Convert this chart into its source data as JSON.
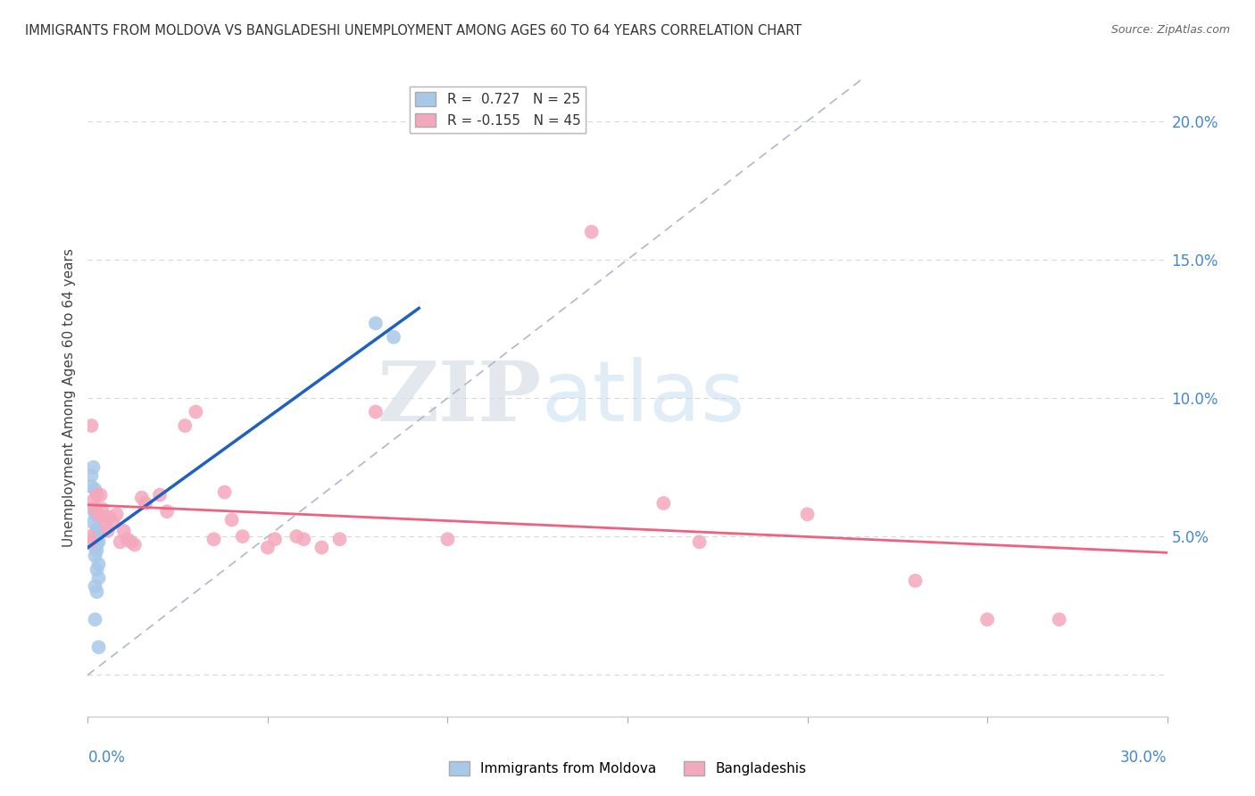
{
  "title": "IMMIGRANTS FROM MOLDOVA VS BANGLADESHI UNEMPLOYMENT AMONG AGES 60 TO 64 YEARS CORRELATION CHART",
  "source": "Source: ZipAtlas.com",
  "ylabel": "Unemployment Among Ages 60 to 64 years",
  "ytick_values": [
    0.0,
    0.05,
    0.1,
    0.15,
    0.2
  ],
  "ytick_labels_right": [
    "",
    "5.0%",
    "10.0%",
    "15.0%",
    "20.0%"
  ],
  "xlim": [
    0.0,
    0.3
  ],
  "ylim": [
    -0.015,
    0.215
  ],
  "moldova_color": "#a8c8e8",
  "bangladesh_color": "#f4a8bc",
  "moldova_line_color": "#2060c0",
  "bangladesh_line_color": "#f06080",
  "diagonal_color": "#b0b8c8",
  "watermark_zip": "ZIP",
  "watermark_atlas": "atlas",
  "moldova_scatter": [
    [
      0.001,
      0.068
    ],
    [
      0.0015,
      0.075
    ],
    [
      0.001,
      0.072
    ],
    [
      0.002,
      0.067
    ],
    [
      0.0015,
      0.06
    ],
    [
      0.002,
      0.058
    ],
    [
      0.0015,
      0.055
    ],
    [
      0.0025,
      0.058
    ],
    [
      0.0025,
      0.053
    ],
    [
      0.002,
      0.05
    ],
    [
      0.0025,
      0.048
    ],
    [
      0.003,
      0.052
    ],
    [
      0.002,
      0.046
    ],
    [
      0.003,
      0.048
    ],
    [
      0.0025,
      0.045
    ],
    [
      0.002,
      0.043
    ],
    [
      0.003,
      0.04
    ],
    [
      0.0025,
      0.038
    ],
    [
      0.002,
      0.032
    ],
    [
      0.003,
      0.035
    ],
    [
      0.0025,
      0.03
    ],
    [
      0.002,
      0.02
    ],
    [
      0.003,
      0.01
    ],
    [
      0.08,
      0.127
    ],
    [
      0.085,
      0.122
    ]
  ],
  "bangladesh_scatter": [
    [
      0.0005,
      0.05
    ],
    [
      0.001,
      0.09
    ],
    [
      0.0008,
      0.048
    ],
    [
      0.0015,
      0.063
    ],
    [
      0.002,
      0.06
    ],
    [
      0.0025,
      0.065
    ],
    [
      0.003,
      0.058
    ],
    [
      0.0035,
      0.065
    ],
    [
      0.004,
      0.06
    ],
    [
      0.0045,
      0.057
    ],
    [
      0.005,
      0.055
    ],
    [
      0.0055,
      0.052
    ],
    [
      0.006,
      0.057
    ],
    [
      0.007,
      0.055
    ],
    [
      0.008,
      0.058
    ],
    [
      0.009,
      0.048
    ],
    [
      0.01,
      0.052
    ],
    [
      0.011,
      0.049
    ],
    [
      0.012,
      0.048
    ],
    [
      0.013,
      0.047
    ],
    [
      0.015,
      0.064
    ],
    [
      0.016,
      0.062
    ],
    [
      0.02,
      0.065
    ],
    [
      0.022,
      0.059
    ],
    [
      0.027,
      0.09
    ],
    [
      0.03,
      0.095
    ],
    [
      0.035,
      0.049
    ],
    [
      0.038,
      0.066
    ],
    [
      0.04,
      0.056
    ],
    [
      0.043,
      0.05
    ],
    [
      0.05,
      0.046
    ],
    [
      0.052,
      0.049
    ],
    [
      0.058,
      0.05
    ],
    [
      0.06,
      0.049
    ],
    [
      0.065,
      0.046
    ],
    [
      0.07,
      0.049
    ],
    [
      0.08,
      0.095
    ],
    [
      0.1,
      0.049
    ],
    [
      0.16,
      0.062
    ],
    [
      0.17,
      0.048
    ],
    [
      0.2,
      0.058
    ],
    [
      0.23,
      0.034
    ],
    [
      0.25,
      0.02
    ],
    [
      0.27,
      0.02
    ],
    [
      0.14,
      0.16
    ]
  ],
  "background_color": "#ffffff",
  "grid_color": "#d8d8d8"
}
